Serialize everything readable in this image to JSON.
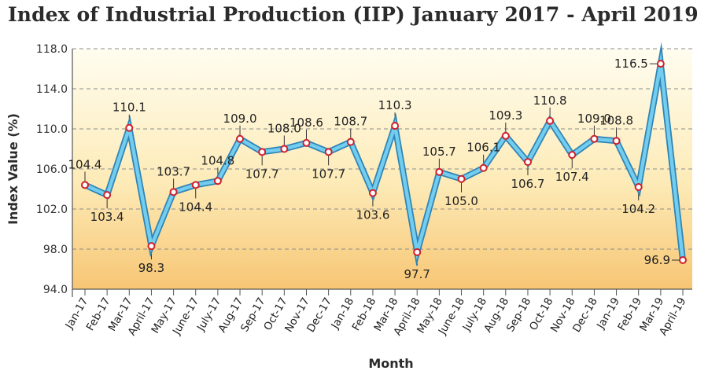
{
  "title": "Index of Industrial Production (IIP) January 2017 - April 2019",
  "colors": {
    "line_outer": "#2f84b6",
    "line_inner": "#73cdee",
    "marker_stroke": "#d0202a",
    "bg_top": "#fffdf0",
    "bg_bottom": "#f7c674",
    "grid": "#8c8c8c"
  },
  "chart_data": {
    "type": "line",
    "title": "Index of Industrial Production (IIP) January 2017 - April 2019",
    "xlabel": "Month",
    "ylabel": "Index Value (%)",
    "ylim": [
      94,
      118
    ],
    "yticks": [
      "94.0",
      "98.0",
      "102.0",
      "106.0",
      "110.0",
      "114.0",
      "118.0"
    ],
    "grid": true,
    "categories": [
      "Jan-17",
      "Feb-17",
      "Mar-17",
      "April-17",
      "May-17",
      "June-17",
      "July-17",
      "Aug-17",
      "Sep-17",
      "Oct-17",
      "Nov-17",
      "Dec-17",
      "Jan-18",
      "Feb-18",
      "Mar-18",
      "April-18",
      "May-18",
      "June-18",
      "July-18",
      "Aug-18",
      "Sep-18",
      "Oct-18",
      "Nov-18",
      "Dec-18",
      "Jan-19",
      "Feb-19",
      "Mar-19",
      "April-19"
    ],
    "values": [
      104.4,
      103.4,
      110.1,
      98.3,
      103.7,
      104.4,
      104.8,
      109.0,
      107.7,
      108.0,
      108.6,
      107.7,
      108.7,
      103.6,
      110.3,
      97.7,
      105.7,
      105.0,
      106.1,
      109.3,
      106.7,
      110.8,
      107.4,
      109.0,
      108.8,
      104.2,
      116.5,
      96.9
    ],
    "data_labels": [
      "104.4",
      "103.4",
      "110.1",
      "98.3",
      "103.7",
      "104.4",
      "104.8",
      "109.0",
      "107.7",
      "108.0",
      "108.6",
      "107.7",
      "108.7",
      "103.6",
      "110.3",
      "97.7",
      "105.7",
      "105.0",
      "106.1",
      "109.3",
      "106.7",
      "110.8",
      "107.4",
      "109.0",
      "108.8",
      "104.2",
      "116.5",
      "96.9"
    ],
    "label_position": [
      "above",
      "below",
      "above",
      "below",
      "above",
      "below",
      "above",
      "above",
      "below",
      "above",
      "above",
      "below",
      "above",
      "below",
      "above",
      "below",
      "above",
      "below",
      "above",
      "above",
      "below",
      "above",
      "below",
      "above",
      "above",
      "below",
      "left",
      "left"
    ]
  }
}
